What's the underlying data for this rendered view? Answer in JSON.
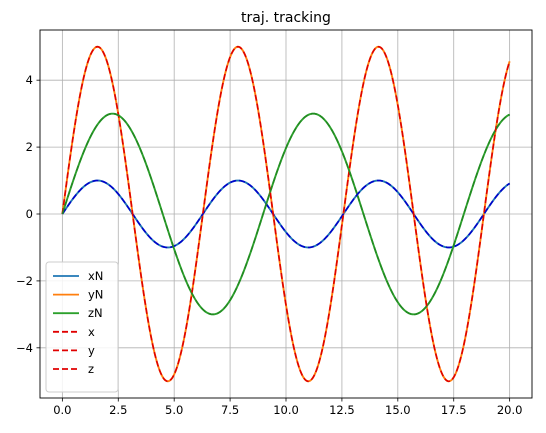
{
  "chart_data": {
    "type": "line",
    "title": "traj. tracking",
    "xlabel": "",
    "ylabel": "",
    "xlim": [
      -1.0,
      21.0
    ],
    "ylim": [
      -5.5,
      5.5
    ],
    "xticks": [
      0.0,
      2.5,
      5.0,
      7.5,
      10.0,
      12.5,
      15.0,
      17.5,
      20.0
    ],
    "xtick_labels": [
      "0.0",
      "2.5",
      "5.0",
      "7.5",
      "10.0",
      "12.5",
      "15.0",
      "17.5",
      "20.0"
    ],
    "yticks": [
      -4,
      -2,
      0,
      2,
      4
    ],
    "ytick_labels": [
      "−4",
      "−2",
      "0",
      "2",
      "4"
    ],
    "grid": true,
    "legend_position": "lower-left",
    "x_range": [
      0,
      20
    ],
    "series": [
      {
        "name": "xN",
        "formula": "1*sin(t)",
        "amplitude": 1,
        "omega": 1.0,
        "color": "#1f77b4",
        "style": "solid"
      },
      {
        "name": "yN",
        "formula": "5*sin(t)",
        "amplitude": 5,
        "omega": 1.0,
        "color": "#ff7f0e",
        "style": "solid"
      },
      {
        "name": "zN",
        "formula": "3*sin(0.7*t)",
        "amplitude": 3,
        "omega": 0.7,
        "color": "#2ca02c",
        "style": "solid"
      },
      {
        "name": "x",
        "formula": "1*sin(t)",
        "amplitude": 1,
        "omega": 1.0,
        "color": "#0000cc",
        "style": "dashed",
        "legend_color": "#e00000"
      },
      {
        "name": "y",
        "formula": "5*sin(t)",
        "amplitude": 5,
        "omega": 1.0,
        "color": "#e00000",
        "style": "dashed"
      },
      {
        "name": "z",
        "formula": "3*sin(0.7*t)",
        "amplitude": 3,
        "omega": 0.7,
        "color": "#228b22",
        "style": "dashed",
        "legend_color": "#e00000"
      }
    ]
  }
}
